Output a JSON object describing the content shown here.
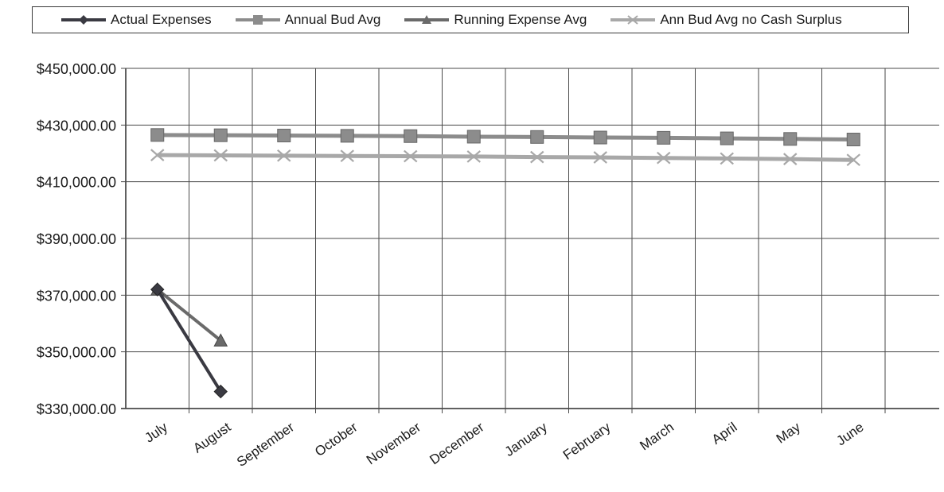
{
  "chart_data": {
    "type": "line",
    "title": "",
    "xlabel": "",
    "ylabel": "",
    "categories": [
      "July",
      "August",
      "September",
      "October",
      "November",
      "December",
      "January",
      "February",
      "March",
      "April",
      "May",
      "June"
    ],
    "ylim": [
      330000,
      450000
    ],
    "yticks": [
      "$330,000.00",
      "$350,000.00",
      "$370,000.00",
      "$390,000.00",
      "$410,000.00",
      "$430,000.00",
      "$450,000.00"
    ],
    "ytick_values": [
      330000,
      350000,
      370000,
      390000,
      410000,
      430000,
      450000
    ],
    "grid": true,
    "legend_position": "top",
    "series": [
      {
        "name": "Actual Expenses",
        "color": "#3a3a42",
        "marker": "diamond",
        "values": [
          372000,
          336000,
          null,
          null,
          null,
          null,
          null,
          null,
          null,
          null,
          null,
          null
        ]
      },
      {
        "name": "Annual Bud Avg",
        "color": "#8c8c8c",
        "marker": "square",
        "values": [
          426500,
          426400,
          426300,
          426200,
          426100,
          425900,
          425800,
          425600,
          425500,
          425300,
          425100,
          424900
        ]
      },
      {
        "name": "Running Expense Avg",
        "color": "#6a6a6a",
        "marker": "triangle",
        "values": [
          372000,
          354000,
          null,
          null,
          null,
          null,
          null,
          null,
          null,
          null,
          null,
          null
        ]
      },
      {
        "name": "Ann Bud Avg no Cash Surplus",
        "color": "#a8a8a8",
        "marker": "x",
        "values": [
          419400,
          419300,
          419200,
          419100,
          419000,
          418900,
          418700,
          418600,
          418400,
          418200,
          418000,
          417700
        ]
      }
    ]
  }
}
